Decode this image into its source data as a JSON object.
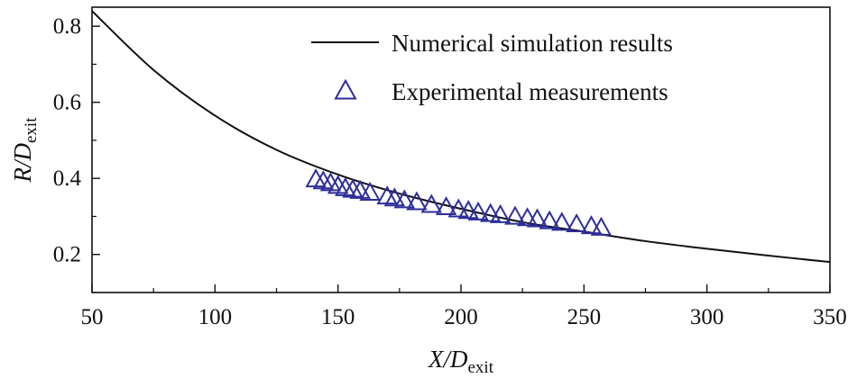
{
  "chart_data": {
    "type": "line+scatter",
    "title": "",
    "xlabel": {
      "main": "X/D",
      "sub": "exit"
    },
    "ylabel": {
      "main": "R/D",
      "sub": "exit"
    },
    "xlim": [
      50,
      350
    ],
    "ylim": [
      0.1,
      0.85
    ],
    "xticks": [
      50,
      100,
      150,
      200,
      250,
      300,
      350
    ],
    "xtick_labels": [
      "50",
      "100",
      "150",
      "200",
      "250",
      "300",
      "350"
    ],
    "yticks": [
      0.2,
      0.4,
      0.6,
      0.8
    ],
    "ytick_labels": [
      "0.2",
      "0.4",
      "0.6",
      "0.8"
    ],
    "grid": false,
    "legend_position": "top-right",
    "series": [
      {
        "name": "Numerical simulation results",
        "kind": "line",
        "color": "#111111",
        "x": [
          50,
          75,
          100,
          125,
          150,
          175,
          200,
          225,
          250,
          275,
          300,
          325,
          350
        ],
        "y": [
          0.84,
          0.685,
          0.565,
          0.475,
          0.41,
          0.36,
          0.32,
          0.285,
          0.26,
          0.235,
          0.215,
          0.197,
          0.18
        ]
      },
      {
        "name": "Experimental measurements",
        "kind": "scatter",
        "marker": "triangle-open",
        "color": "#2e2e9a",
        "x": [
          141,
          144,
          147,
          150,
          153,
          156,
          159,
          163,
          170,
          173,
          177,
          182,
          188,
          194,
          199,
          203,
          207,
          212,
          216,
          222,
          227,
          231,
          236,
          241,
          247,
          253,
          257
        ],
        "y": [
          0.395,
          0.39,
          0.385,
          0.378,
          0.372,
          0.368,
          0.365,
          0.36,
          0.35,
          0.345,
          0.34,
          0.335,
          0.328,
          0.322,
          0.316,
          0.312,
          0.308,
          0.304,
          0.301,
          0.297,
          0.293,
          0.29,
          0.285,
          0.281,
          0.277,
          0.272,
          0.268
        ]
      }
    ]
  }
}
